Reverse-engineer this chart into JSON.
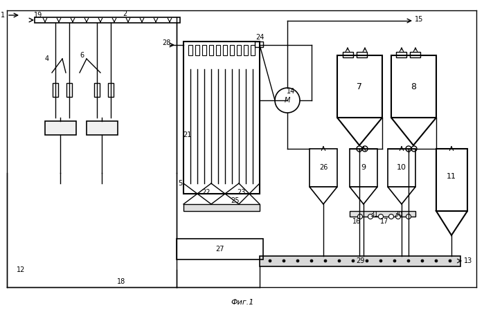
{
  "title": "Фиг.1",
  "bg_color": "#ffffff",
  "line_color": "#000000",
  "figsize": [
    6.99,
    4.48
  ],
  "dpi": 100
}
